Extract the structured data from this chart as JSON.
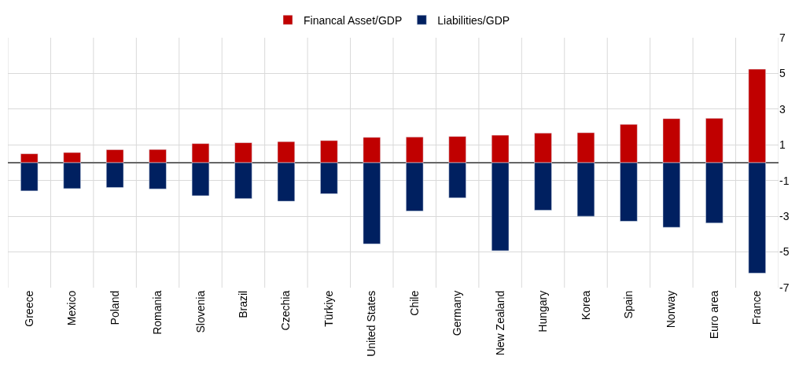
{
  "chart_data": {
    "type": "bar",
    "stacked": true,
    "categories": [
      "Greece",
      "Mexico",
      "Poland",
      "Romania",
      "Slovenia",
      "Brazil",
      "Czechia",
      "Türkiye",
      "United States",
      "Chile",
      "Germany",
      "New Zealand",
      "Hungary",
      "Korea",
      "Spain",
      "Norway",
      "Euro area",
      "France"
    ],
    "series": [
      {
        "name": "Financal Asset/GDP",
        "color": "#c00000",
        "values": [
          0.5,
          0.57,
          0.73,
          0.74,
          1.07,
          1.12,
          1.18,
          1.24,
          1.42,
          1.44,
          1.47,
          1.54,
          1.66,
          1.68,
          2.15,
          2.47,
          2.49,
          5.24
        ]
      },
      {
        "name": "Liabilities/GDP",
        "color": "#002060",
        "values": [
          -1.58,
          -1.45,
          -1.39,
          -1.47,
          -1.85,
          -2.01,
          -2.16,
          -1.74,
          -4.55,
          -2.71,
          -1.97,
          -4.93,
          -2.66,
          -3.0,
          -3.28,
          -3.62,
          -3.38,
          -6.19
        ]
      }
    ],
    "ylim": [
      -7,
      7
    ],
    "yticks": [
      -7,
      -5,
      -3,
      -1,
      1,
      3,
      5,
      7
    ],
    "grid": true,
    "legend": "top"
  }
}
